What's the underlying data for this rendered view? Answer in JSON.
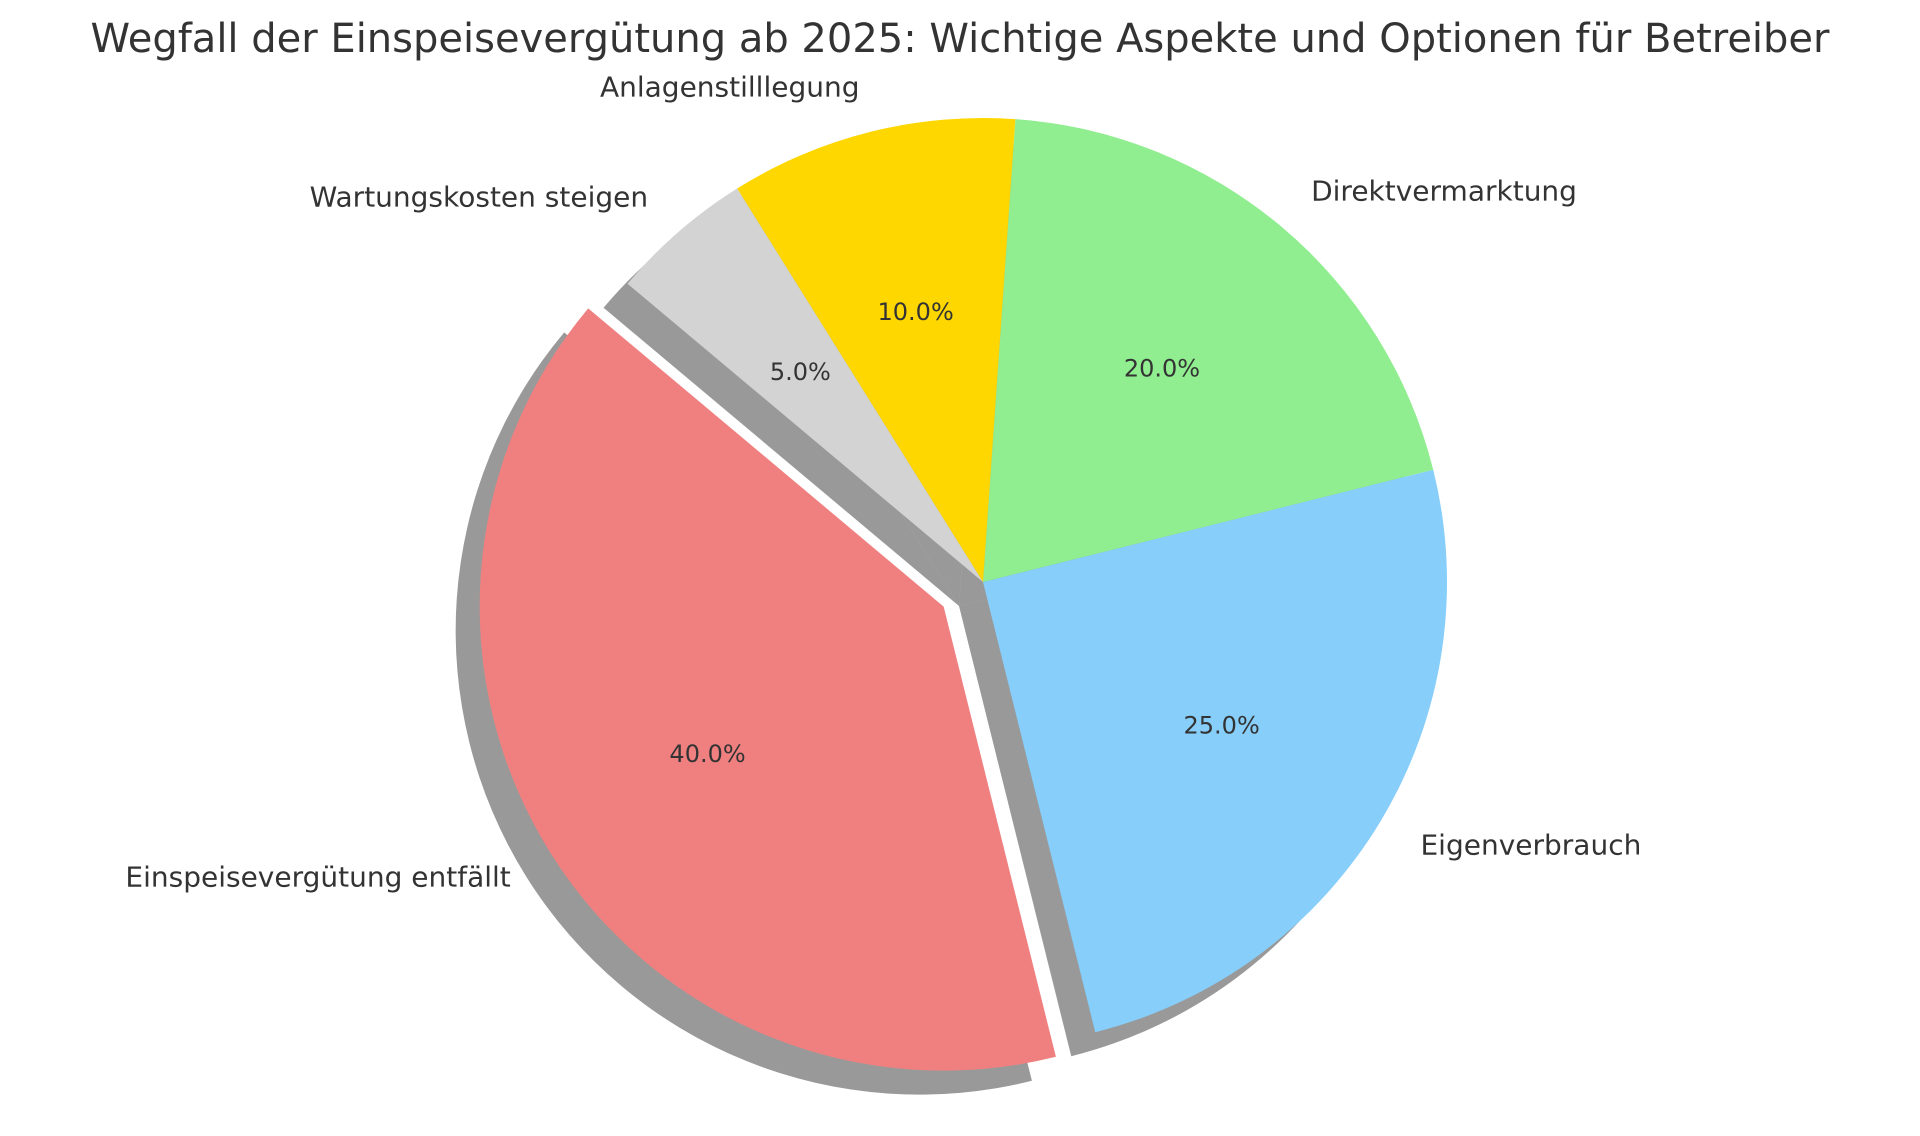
{
  "chart_data": {
    "type": "pie",
    "title": "Wegfall der Einspeisevergütung ab 2025: Wichtige Aspekte und Optionen für Betreiber",
    "slices": [
      {
        "label": "Einspeisevergütung entfällt",
        "value": 40.0,
        "pct_label": "40.0%",
        "color": "#F08080",
        "exploded": true
      },
      {
        "label": "Eigenverbrauch",
        "value": 25.0,
        "pct_label": "25.0%",
        "color": "#87CEFA",
        "exploded": false
      },
      {
        "label": "Direktvermarktung",
        "value": 20.0,
        "pct_label": "20.0%",
        "color": "#90EE90",
        "exploded": false
      },
      {
        "label": "Anlagenstilllegung",
        "value": 10.0,
        "pct_label": "10.0%",
        "color": "#FFD700",
        "exploded": false
      },
      {
        "label": "Wartungskosten steigen",
        "value": 5.0,
        "pct_label": "5.0%",
        "color": "#D3D3D3",
        "exploded": false
      }
    ],
    "start_angle_deg": 140,
    "shadow": true
  }
}
